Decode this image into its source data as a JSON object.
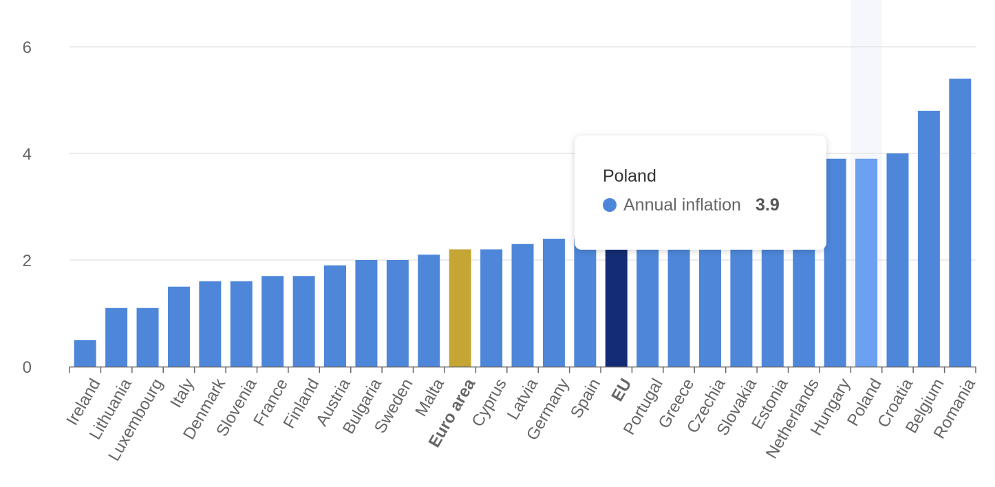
{
  "chart_data": {
    "type": "bar",
    "categories": [
      "Ireland",
      "Lithuania",
      "Luxembourg",
      "Italy",
      "Denmark",
      "Slovenia",
      "France",
      "Finland",
      "Austria",
      "Bulgaria",
      "Sweden",
      "Malta",
      "Euro area",
      "Cyprus",
      "Latvia",
      "Germany",
      "Spain",
      "EU",
      "Portugal",
      "Greece",
      "Czechia",
      "Slovakia",
      "Estonia",
      "Netherlands",
      "Hungary",
      "Poland",
      "Croatia",
      "Belgium",
      "Romania"
    ],
    "series": [
      {
        "name": "Annual inflation",
        "values": [
          0.5,
          1.1,
          1.1,
          1.5,
          1.6,
          1.6,
          1.7,
          1.7,
          1.9,
          2.0,
          2.0,
          2.1,
          2.2,
          2.2,
          2.3,
          2.4,
          2.4,
          2.5,
          2.6,
          2.8,
          2.9,
          3.1,
          3.3,
          3.5,
          3.9,
          3.9,
          4.0,
          4.8,
          5.4
        ]
      }
    ],
    "ylim": [
      0,
      6
    ],
    "yticks": [
      0,
      2,
      4,
      6
    ],
    "yticks_labels": [
      "0",
      "2",
      "4",
      "6"
    ],
    "grid": true,
    "legend": "none",
    "highlighted_categories": {
      "Euro area": "aggregate-euro-area",
      "EU": "aggregate-eu",
      "Poland": "hovered"
    },
    "bold_categories": [
      "Euro area",
      "EU"
    ],
    "colors": {
      "bar": "#4e87da",
      "euro_area": "#c5a634",
      "eu": "#142c75",
      "hovered": "#6ca0f0",
      "hover_band": "#f5f7fc",
      "grid": "#e6e6e6",
      "axis": "#666666"
    }
  },
  "tooltip": {
    "title": "Poland",
    "series_name": "Annual inflation",
    "value": "3.9",
    "dot_color": "#4e87da"
  }
}
